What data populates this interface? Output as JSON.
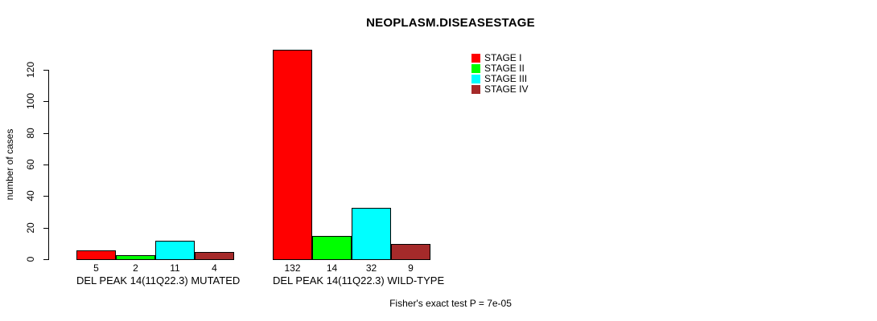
{
  "chart_data": {
    "type": "bar",
    "title": "NEOPLASM.DISEASESTAGE",
    "xlabel": "",
    "ylabel": "number of cases",
    "ylim": [
      0,
      120
    ],
    "yticks": [
      0,
      20,
      40,
      60,
      80,
      100,
      120
    ],
    "grid": false,
    "legend_position": "top-right-inside",
    "legend": [
      {
        "label": "STAGE I",
        "color": "#ff0000"
      },
      {
        "label": "STAGE II",
        "color": "#00ff00"
      },
      {
        "label": "STAGE III",
        "color": "#00ffff"
      },
      {
        "label": "STAGE IV",
        "color": "#a52a2a"
      }
    ],
    "categories": [
      "DEL PEAK 14(11Q22.3) MUTATED",
      "DEL PEAK 14(11Q22.3) WILD-TYPE"
    ],
    "series": [
      {
        "name": "STAGE I",
        "values": [
          5,
          132
        ]
      },
      {
        "name": "STAGE II",
        "values": [
          2,
          14
        ]
      },
      {
        "name": "STAGE III",
        "values": [
          11,
          32
        ]
      },
      {
        "name": "STAGE IV",
        "values": [
          4,
          9
        ]
      }
    ],
    "bar_value_labels": [
      [
        5,
        2,
        11,
        4
      ],
      [
        132,
        14,
        32,
        9
      ]
    ],
    "annotation": "Fisher's exact test P = 7e-05"
  }
}
